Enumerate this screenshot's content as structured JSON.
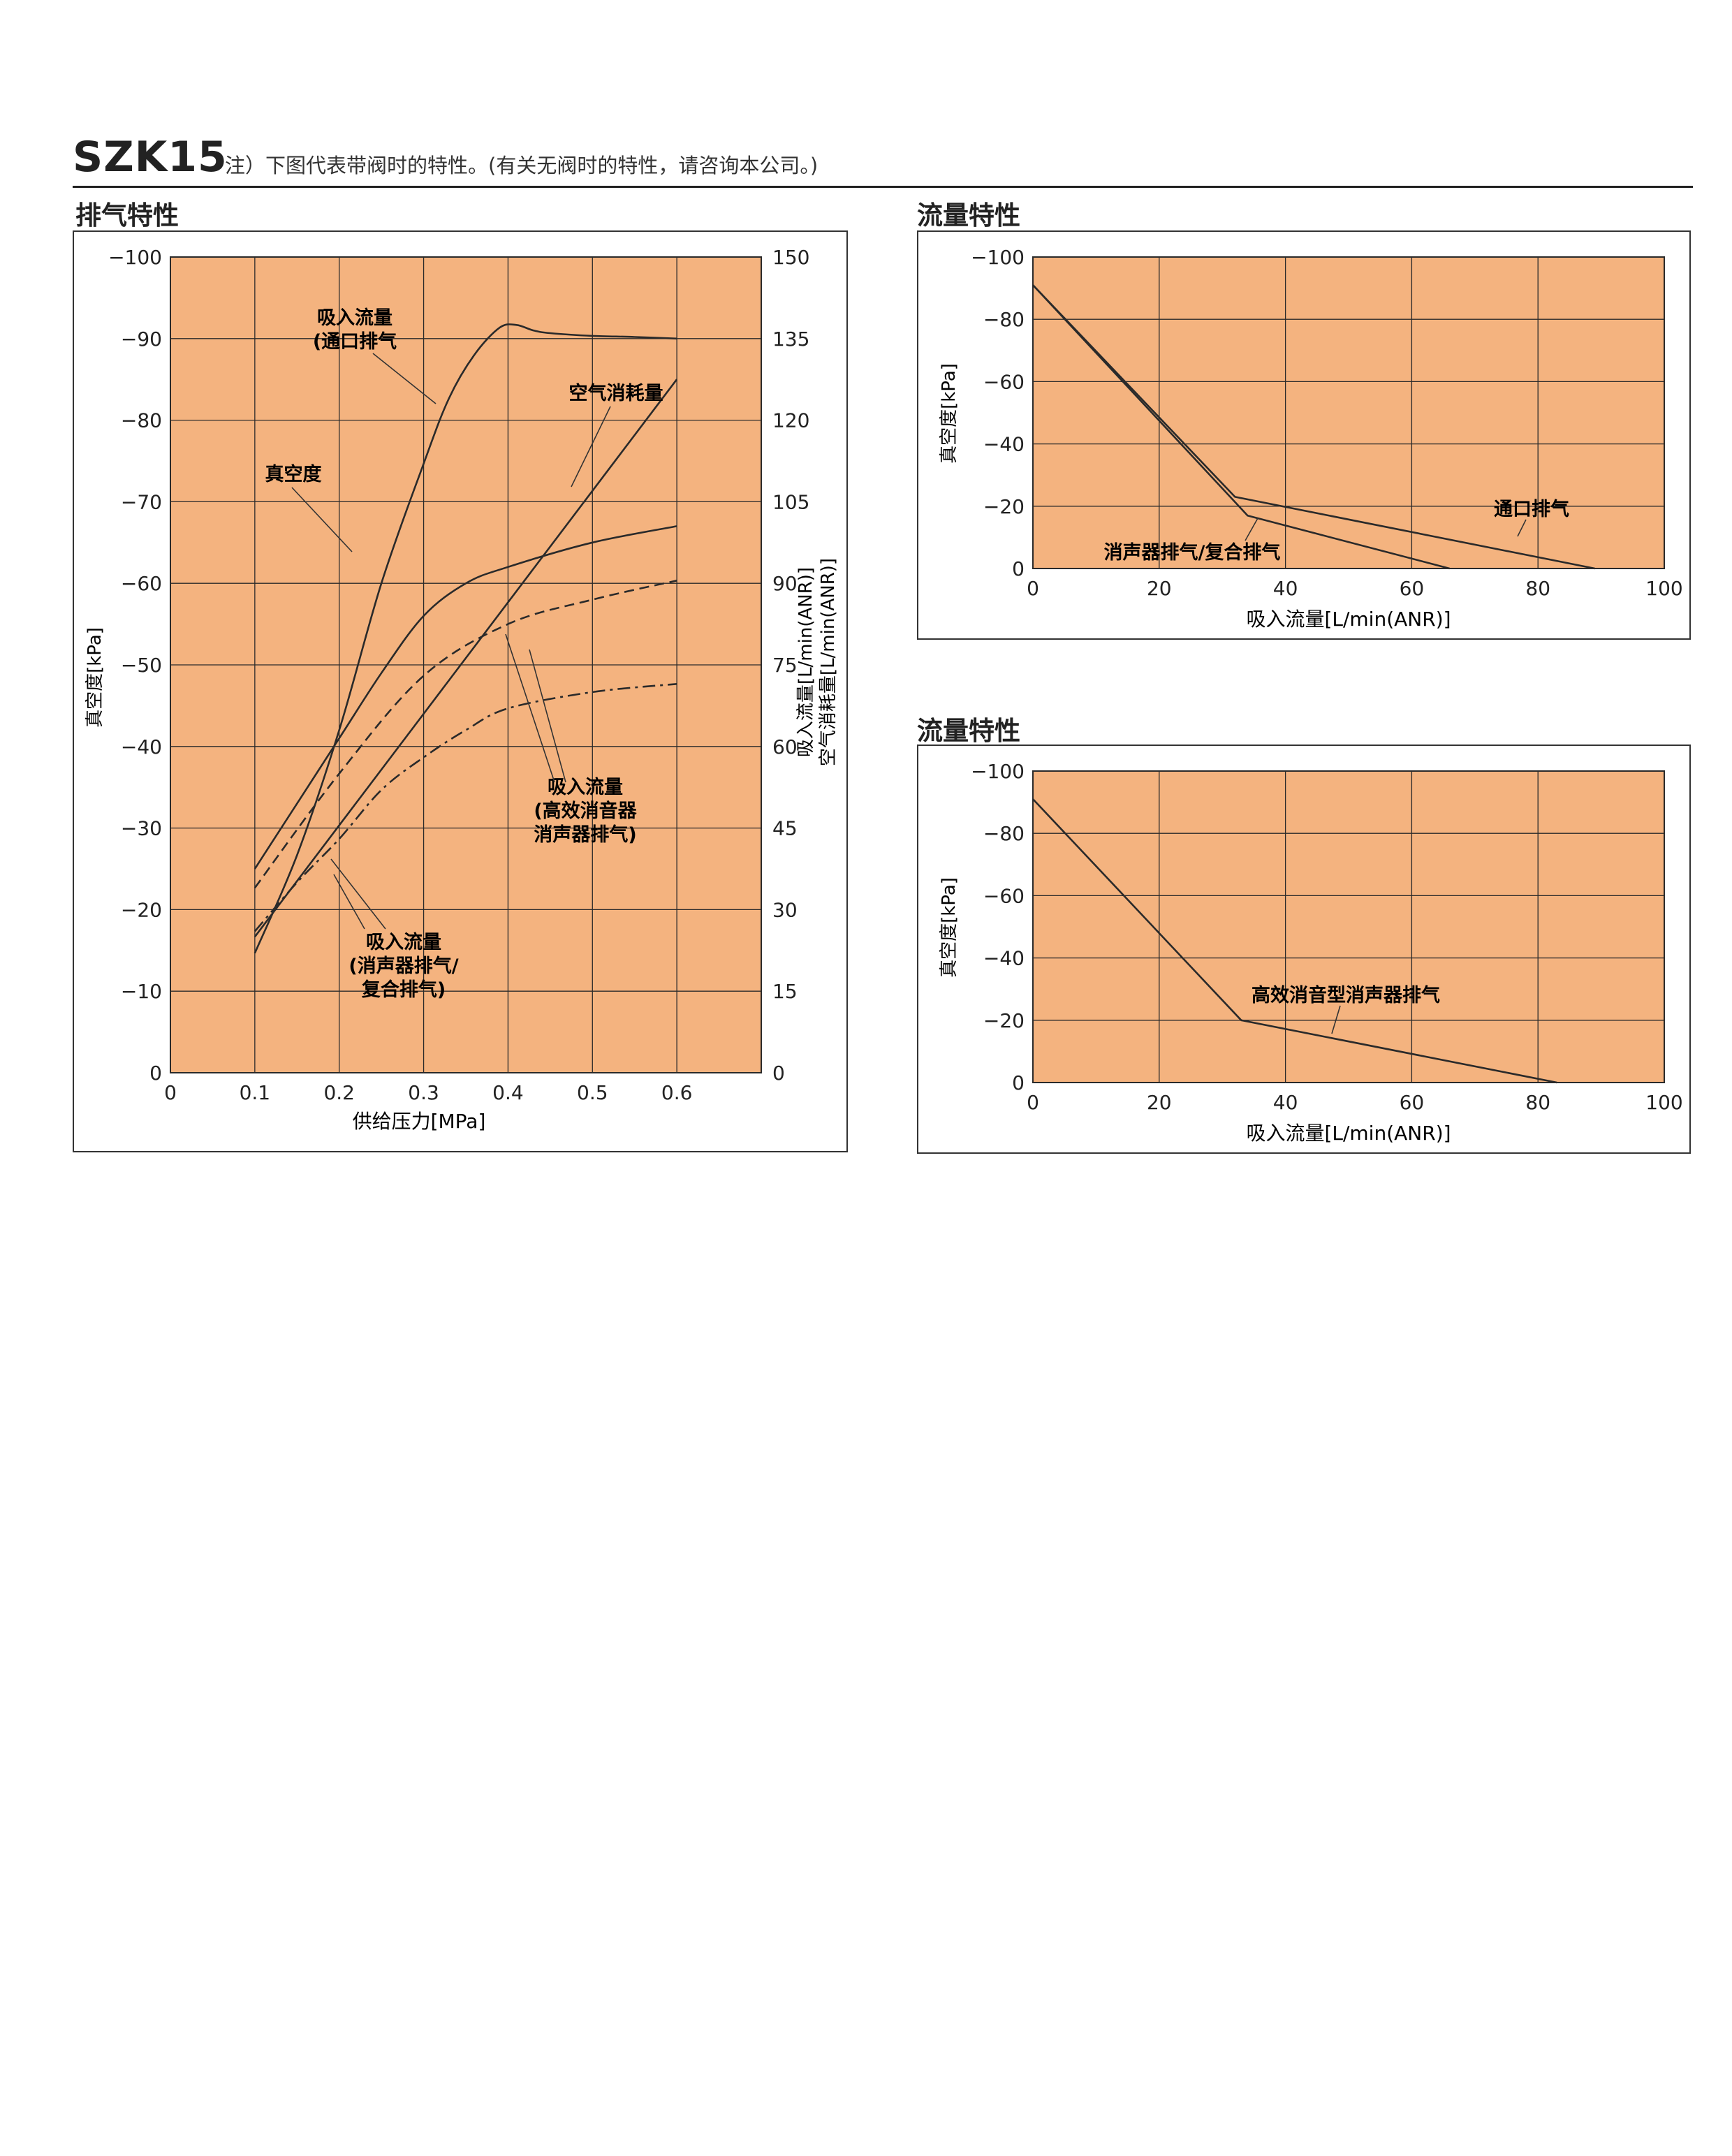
{
  "header": {
    "model": "SZK15",
    "note": "注）下图代表带阀时的特性。(有关无阀时的特性，请咨询本公司。)"
  },
  "colors": {
    "plot_background": "#F4B37F",
    "grid": "#2a2a2a",
    "line": "#2a2a2a"
  },
  "sections": {
    "exhaust_title": "排气特性",
    "flow1_title": "流量特性",
    "flow2_title": "流量特性"
  },
  "chart_data": [
    {
      "id": "exhaust",
      "type": "line",
      "xlabel": "供给压力[MPa]",
      "ylabel_left": "真空度[kPa]",
      "ylabel_right": [
        "吸入流量[L/min(ANR)]",
        "空气消耗量[L/min(ANR)]"
      ],
      "xlim": [
        0,
        0.7
      ],
      "ylim_left": [
        0,
        -100
      ],
      "ylim_right": [
        0,
        150
      ],
      "x_ticks": [
        "0",
        "0.1",
        "0.2",
        "0.3",
        "0.4",
        "0.5",
        "0.6"
      ],
      "y_ticks_left": [
        "0",
        "−10",
        "−20",
        "−30",
        "−40",
        "−50",
        "−60",
        "−70",
        "−80",
        "−90",
        "−100"
      ],
      "y_ticks_right": [
        "0",
        "15",
        "30",
        "45",
        "60",
        "75",
        "90",
        "105",
        "120",
        "135",
        "150"
      ],
      "grid": true,
      "series": [
        {
          "name": "真空度",
          "axis": "left",
          "style": "solid",
          "x": [
            0.1,
            0.15,
            0.2,
            0.25,
            0.3,
            0.35,
            0.4,
            0.5,
            0.6
          ],
          "y": [
            -25,
            -33,
            -41,
            -49,
            -56,
            -60,
            -62,
            -65,
            -67
          ]
        },
        {
          "name": "空气消耗量",
          "axis": "right",
          "style": "solid",
          "x": [
            0.1,
            0.6
          ],
          "y": [
            25,
            127.5
          ]
        },
        {
          "name": "吸入流量(通口排气)",
          "axis": "right",
          "style": "solid",
          "x": [
            0.1,
            0.15,
            0.2,
            0.25,
            0.3,
            0.33,
            0.36,
            0.39,
            0.41,
            0.43,
            0.45,
            0.5,
            0.55,
            0.6
          ],
          "y": [
            22,
            40,
            63,
            90,
            112,
            124,
            132,
            137,
            137.5,
            136.5,
            136,
            135.5,
            135.3,
            135
          ]
        },
        {
          "name": "吸入流量(高效消音器消声器排气)",
          "axis": "right",
          "style": "dashed",
          "x": [
            0.1,
            0.2,
            0.3,
            0.4,
            0.5,
            0.6
          ],
          "y": [
            34,
            55,
            73,
            82.5,
            87,
            90.5
          ]
        },
        {
          "name": "吸入流量(消声器排气/复合排气)",
          "axis": "right",
          "style": "dash-dot",
          "x": [
            0.1,
            0.15,
            0.2,
            0.25,
            0.3,
            0.35,
            0.4,
            0.5,
            0.6
          ],
          "y": [
            26,
            35,
            43,
            52,
            58,
            63,
            67,
            70,
            71.5
          ]
        }
      ],
      "labels": {
        "vacuum": "真空度",
        "air_consumption": "空气消耗量",
        "suction_port": [
          "吸入流量",
          "(通口排气"
        ],
        "suction_high_eff": [
          "吸入流量",
          "(高效消音器",
          "消声器排气)"
        ],
        "suction_silencer": [
          "吸入流量",
          "(消声器排气/",
          "复合排气)"
        ]
      }
    },
    {
      "id": "flow1",
      "type": "line",
      "xlabel": "吸入流量[L/min(ANR)]",
      "ylabel": "真空度[kPa]",
      "xlim": [
        0,
        100
      ],
      "ylim": [
        0,
        -100
      ],
      "x_ticks": [
        "0",
        "20",
        "40",
        "60",
        "80",
        "100"
      ],
      "y_ticks": [
        "0",
        "−20",
        "−40",
        "−60",
        "−80",
        "−100"
      ],
      "grid": true,
      "series": [
        {
          "name": "通口排气",
          "x": [
            0,
            32,
            89
          ],
          "y": [
            -91,
            -23,
            0
          ]
        },
        {
          "name": "消声器排气/复合排气",
          "x": [
            0,
            34,
            66
          ],
          "y": [
            -91,
            -17,
            0
          ]
        }
      ],
      "labels": {
        "port": "通口排气",
        "silencer": "消声器排气/复合排气"
      }
    },
    {
      "id": "flow2",
      "type": "line",
      "xlabel": "吸入流量[L/min(ANR)]",
      "ylabel": "真空度[kPa]",
      "xlim": [
        0,
        100
      ],
      "ylim": [
        0,
        -100
      ],
      "x_ticks": [
        "0",
        "20",
        "40",
        "60",
        "80",
        "100"
      ],
      "y_ticks": [
        "0",
        "−20",
        "−40",
        "−60",
        "−80",
        "−100"
      ],
      "grid": true,
      "series": [
        {
          "name": "高效消音型消声器排气",
          "x": [
            0,
            33,
            83
          ],
          "y": [
            -91,
            -20,
            0
          ]
        }
      ],
      "labels": {
        "high_eff": "高效消音型消声器排气"
      }
    }
  ]
}
